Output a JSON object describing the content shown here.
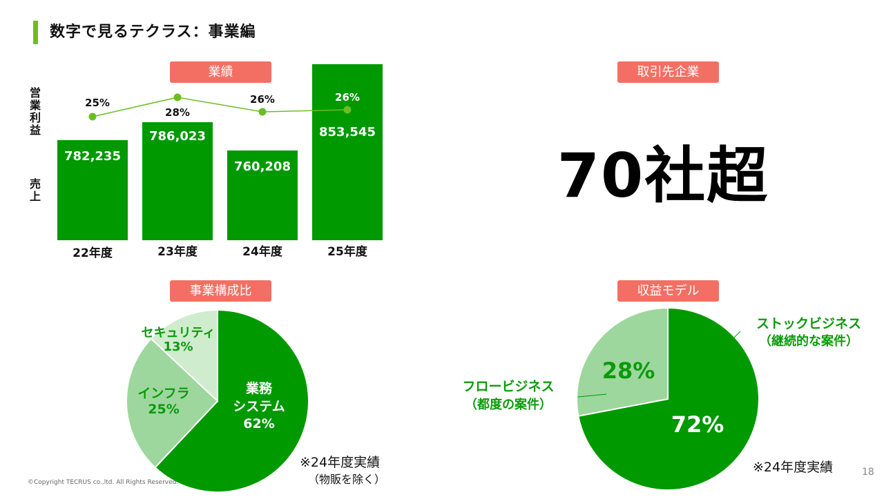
{
  "header": {
    "title": "数字で見るテクラス：事業編"
  },
  "sections": {
    "performance": "業績",
    "clients": "取引先企業",
    "composition": "事業構成比",
    "revenue_model": "収益モデル"
  },
  "axis": {
    "profit_label": "営業利益",
    "sales_label": "売上"
  },
  "clients_count": "70社超",
  "colors": {
    "bar": "#009900",
    "line": "#6abf1f",
    "pill": "#f36f63",
    "title_accent": "#6fbe1f",
    "pie_dark": "#009900",
    "pie_mid": "#9dd79d",
    "pie_light": "#cfeccf"
  },
  "chart_data": [
    {
      "type": "bar",
      "categories": [
        "22年度",
        "23年度",
        "24年度",
        "25年度"
      ],
      "series": [
        {
          "values": [
            782235,
            786023,
            760208,
            853545
          ],
          "labels": [
            "782,235",
            "786,023",
            "760,208",
            "853,545"
          ]
        },
        {
          "values": [
            25,
            28,
            26,
            26
          ],
          "labels": [
            "25%",
            "28%",
            "26%",
            "26%"
          ]
        }
      ]
    },
    {
      "type": "pie",
      "slices": [
        {
          "label": "業務\nシステム",
          "value": 62,
          "value_label": "62%"
        },
        {
          "label": "インフラ",
          "value": 25,
          "value_label": "25%"
        },
        {
          "label": "セキュリティ",
          "value": 13,
          "value_label": "13%"
        }
      ],
      "note": "※24年度実績",
      "note_sub": "（物販を除く）"
    },
    {
      "type": "pie",
      "slices": [
        {
          "label": "ストックビジネス",
          "sublabel": "（継続的な案件）",
          "value": 72,
          "value_label": "72%"
        },
        {
          "label": "フロービジネス",
          "sublabel": "（都度の案件）",
          "value": 28,
          "value_label": "28%"
        }
      ],
      "note": "※24年度実績"
    }
  ],
  "footer": {
    "copyright": "©Copyright TECRUS co.,ltd. All Rights Reserved.",
    "page": "18"
  }
}
